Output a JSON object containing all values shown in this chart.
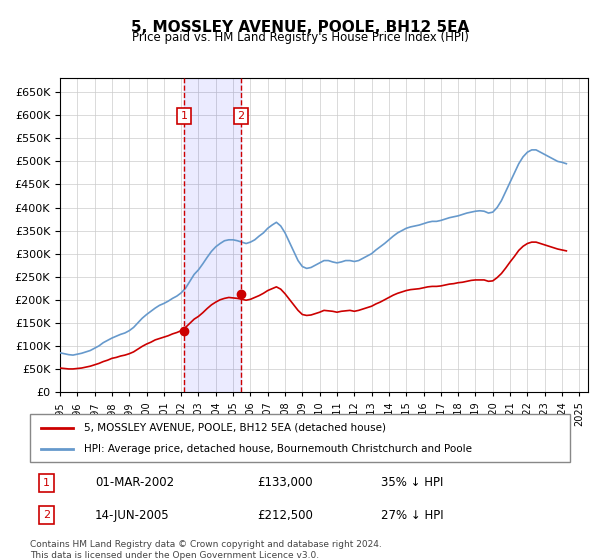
{
  "title": "5, MOSSLEY AVENUE, POOLE, BH12 5EA",
  "subtitle": "Price paid vs. HM Land Registry's House Price Index (HPI)",
  "ylabel": "",
  "ylim": [
    0,
    680000
  ],
  "yticks": [
    0,
    50000,
    100000,
    150000,
    200000,
    250000,
    300000,
    350000,
    400000,
    450000,
    500000,
    550000,
    600000,
    650000
  ],
  "xlim_start": 1995.0,
  "xlim_end": 2025.5,
  "sale1_date": 2002.17,
  "sale1_price": 133000,
  "sale1_label": "1",
  "sale1_text": "01-MAR-2002",
  "sale1_amount": "£133,000",
  "sale1_pct": "35% ↓ HPI",
  "sale2_date": 2005.45,
  "sale2_price": 212500,
  "sale2_label": "2",
  "sale2_text": "14-JUN-2005",
  "sale2_amount": "£212,500",
  "sale2_pct": "27% ↓ HPI",
  "red_line_color": "#cc0000",
  "blue_line_color": "#6699cc",
  "grid_color": "#cccccc",
  "background_color": "#ffffff",
  "vline_color": "#cc0000",
  "box_color": "#cc0000",
  "legend_label_red": "5, MOSSLEY AVENUE, POOLE, BH12 5EA (detached house)",
  "legend_label_blue": "HPI: Average price, detached house, Bournemouth Christchurch and Poole",
  "footer": "Contains HM Land Registry data © Crown copyright and database right 2024.\nThis data is licensed under the Open Government Licence v3.0.",
  "hpi_years": [
    1995.0,
    1995.25,
    1995.5,
    1995.75,
    1996.0,
    1996.25,
    1996.5,
    1996.75,
    1997.0,
    1997.25,
    1997.5,
    1997.75,
    1998.0,
    1998.25,
    1998.5,
    1998.75,
    1999.0,
    1999.25,
    1999.5,
    1999.75,
    2000.0,
    2000.25,
    2000.5,
    2000.75,
    2001.0,
    2001.25,
    2001.5,
    2001.75,
    2002.0,
    2002.25,
    2002.5,
    2002.75,
    2003.0,
    2003.25,
    2003.5,
    2003.75,
    2004.0,
    2004.25,
    2004.5,
    2004.75,
    2005.0,
    2005.25,
    2005.5,
    2005.75,
    2006.0,
    2006.25,
    2006.5,
    2006.75,
    2007.0,
    2007.25,
    2007.5,
    2007.75,
    2008.0,
    2008.25,
    2008.5,
    2008.75,
    2009.0,
    2009.25,
    2009.5,
    2009.75,
    2010.0,
    2010.25,
    2010.5,
    2010.75,
    2011.0,
    2011.25,
    2011.5,
    2011.75,
    2012.0,
    2012.25,
    2012.5,
    2012.75,
    2013.0,
    2013.25,
    2013.5,
    2013.75,
    2014.0,
    2014.25,
    2014.5,
    2014.75,
    2015.0,
    2015.25,
    2015.5,
    2015.75,
    2016.0,
    2016.25,
    2016.5,
    2016.75,
    2017.0,
    2017.25,
    2017.5,
    2017.75,
    2018.0,
    2018.25,
    2018.5,
    2018.75,
    2019.0,
    2019.25,
    2019.5,
    2019.75,
    2020.0,
    2020.25,
    2020.5,
    2020.75,
    2021.0,
    2021.25,
    2021.5,
    2021.75,
    2022.0,
    2022.25,
    2022.5,
    2022.75,
    2023.0,
    2023.25,
    2023.5,
    2023.75,
    2024.0,
    2024.25
  ],
  "hpi_values": [
    85000,
    83000,
    81000,
    80000,
    82000,
    84000,
    87000,
    90000,
    95000,
    100000,
    107000,
    112000,
    117000,
    121000,
    125000,
    128000,
    133000,
    140000,
    150000,
    160000,
    168000,
    175000,
    182000,
    188000,
    192000,
    197000,
    203000,
    208000,
    215000,
    225000,
    240000,
    255000,
    265000,
    278000,
    292000,
    305000,
    315000,
    322000,
    328000,
    330000,
    330000,
    328000,
    325000,
    322000,
    325000,
    330000,
    338000,
    345000,
    355000,
    362000,
    368000,
    360000,
    345000,
    325000,
    305000,
    285000,
    272000,
    268000,
    270000,
    275000,
    280000,
    285000,
    285000,
    282000,
    280000,
    282000,
    285000,
    285000,
    283000,
    285000,
    290000,
    295000,
    300000,
    308000,
    315000,
    322000,
    330000,
    338000,
    345000,
    350000,
    355000,
    358000,
    360000,
    362000,
    365000,
    368000,
    370000,
    370000,
    372000,
    375000,
    378000,
    380000,
    382000,
    385000,
    388000,
    390000,
    392000,
    393000,
    392000,
    388000,
    390000,
    400000,
    415000,
    435000,
    455000,
    475000,
    495000,
    510000,
    520000,
    525000,
    525000,
    520000,
    515000,
    510000,
    505000,
    500000,
    498000,
    495000
  ],
  "red_years": [
    1995.0,
    1995.25,
    1995.5,
    1995.75,
    1996.0,
    1996.25,
    1996.5,
    1996.75,
    1997.0,
    1997.25,
    1997.5,
    1997.75,
    1998.0,
    1998.25,
    1998.5,
    1998.75,
    1999.0,
    1999.25,
    1999.5,
    1999.75,
    2000.0,
    2000.25,
    2000.5,
    2000.75,
    2001.0,
    2001.25,
    2001.5,
    2001.75,
    2002.0,
    2002.25,
    2002.5,
    2002.75,
    2003.0,
    2003.25,
    2003.5,
    2003.75,
    2004.0,
    2004.25,
    2004.5,
    2004.75,
    2005.0,
    2005.25,
    2005.5,
    2005.75,
    2006.0,
    2006.25,
    2006.5,
    2006.75,
    2007.0,
    2007.25,
    2007.5,
    2007.75,
    2008.0,
    2008.25,
    2008.5,
    2008.75,
    2009.0,
    2009.25,
    2009.5,
    2009.75,
    2010.0,
    2010.25,
    2010.5,
    2010.75,
    2011.0,
    2011.25,
    2011.5,
    2011.75,
    2012.0,
    2012.25,
    2012.5,
    2012.75,
    2013.0,
    2013.25,
    2013.5,
    2013.75,
    2014.0,
    2014.25,
    2014.5,
    2014.75,
    2015.0,
    2015.25,
    2015.5,
    2015.75,
    2016.0,
    2016.25,
    2016.5,
    2016.75,
    2017.0,
    2017.25,
    2017.5,
    2017.75,
    2018.0,
    2018.25,
    2018.5,
    2018.75,
    2019.0,
    2019.25,
    2019.5,
    2019.75,
    2020.0,
    2020.25,
    2020.5,
    2020.75,
    2021.0,
    2021.25,
    2021.5,
    2021.75,
    2022.0,
    2022.25,
    2022.5,
    2022.75,
    2023.0,
    2023.25,
    2023.5,
    2023.75,
    2024.0,
    2024.25
  ],
  "red_values": [
    52000,
    51000,
    50000,
    50000,
    51000,
    52000,
    54000,
    56000,
    59000,
    62000,
    66000,
    69000,
    73000,
    75000,
    78000,
    80000,
    83000,
    87000,
    93000,
    99000,
    104000,
    108000,
    113000,
    116000,
    119000,
    122000,
    126000,
    129000,
    133000,
    140000,
    149000,
    158000,
    164000,
    172000,
    181000,
    189000,
    195000,
    200000,
    203000,
    205000,
    204000,
    203000,
    201000,
    199000,
    201000,
    205000,
    209000,
    214000,
    220000,
    224000,
    228000,
    223000,
    213000,
    201000,
    189000,
    177000,
    168000,
    166000,
    167000,
    170000,
    173000,
    177000,
    176000,
    175000,
    173000,
    175000,
    176000,
    177000,
    175000,
    177000,
    180000,
    183000,
    186000,
    191000,
    195000,
    200000,
    205000,
    210000,
    214000,
    217000,
    220000,
    222000,
    223000,
    224000,
    226000,
    228000,
    229000,
    229000,
    230000,
    232000,
    234000,
    235000,
    237000,
    238000,
    240000,
    242000,
    243000,
    243000,
    243000,
    240000,
    241000,
    248000,
    257000,
    269000,
    282000,
    294000,
    307000,
    316000,
    322000,
    325000,
    325000,
    322000,
    319000,
    316000,
    313000,
    310000,
    308000,
    306000
  ]
}
